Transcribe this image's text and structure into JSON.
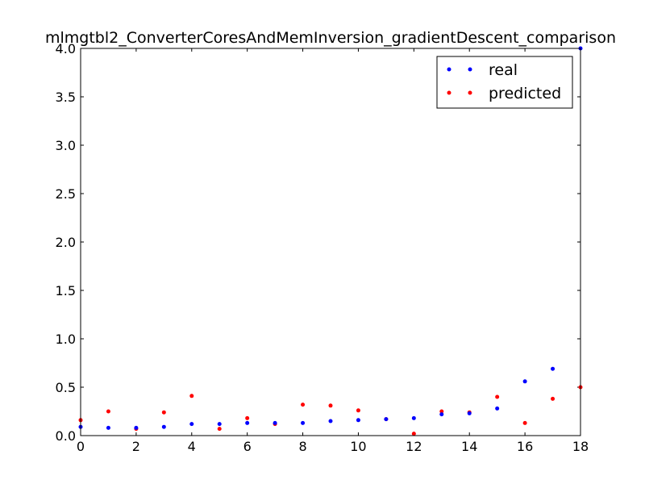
{
  "chart_data": {
    "type": "scatter",
    "title": "mlmgtbl2_ConverterCoresAndMemInversion_gradientDescent_comparison",
    "xlabel": "",
    "ylabel": "",
    "xlim": [
      0,
      18
    ],
    "ylim": [
      0,
      4.0
    ],
    "x_ticks": [
      "0",
      "2",
      "4",
      "6",
      "8",
      "10",
      "12",
      "14",
      "16",
      "18"
    ],
    "y_ticks": [
      "0.0",
      "0.5",
      "1.0",
      "1.5",
      "2.0",
      "2.5",
      "3.0",
      "3.5",
      "4.0"
    ],
    "grid": false,
    "legend_position": "upper right",
    "x": [
      0,
      1,
      2,
      3,
      4,
      5,
      6,
      7,
      8,
      9,
      10,
      11,
      12,
      13,
      14,
      15,
      16,
      17,
      18
    ],
    "series": [
      {
        "name": "real",
        "color": "#0000ff",
        "values": [
          0.09,
          0.08,
          0.08,
          0.09,
          0.12,
          0.12,
          0.13,
          0.13,
          0.13,
          0.15,
          0.16,
          0.17,
          0.18,
          0.22,
          0.23,
          0.28,
          0.56,
          0.69,
          4.0
        ]
      },
      {
        "name": "predicted",
        "color": "#ff0000",
        "values": [
          0.16,
          0.25,
          0.07,
          0.24,
          0.41,
          0.07,
          0.18,
          0.12,
          0.32,
          0.31,
          0.26,
          0.17,
          0.02,
          0.25,
          0.24,
          0.4,
          0.13,
          0.38,
          0.5
        ]
      }
    ]
  }
}
